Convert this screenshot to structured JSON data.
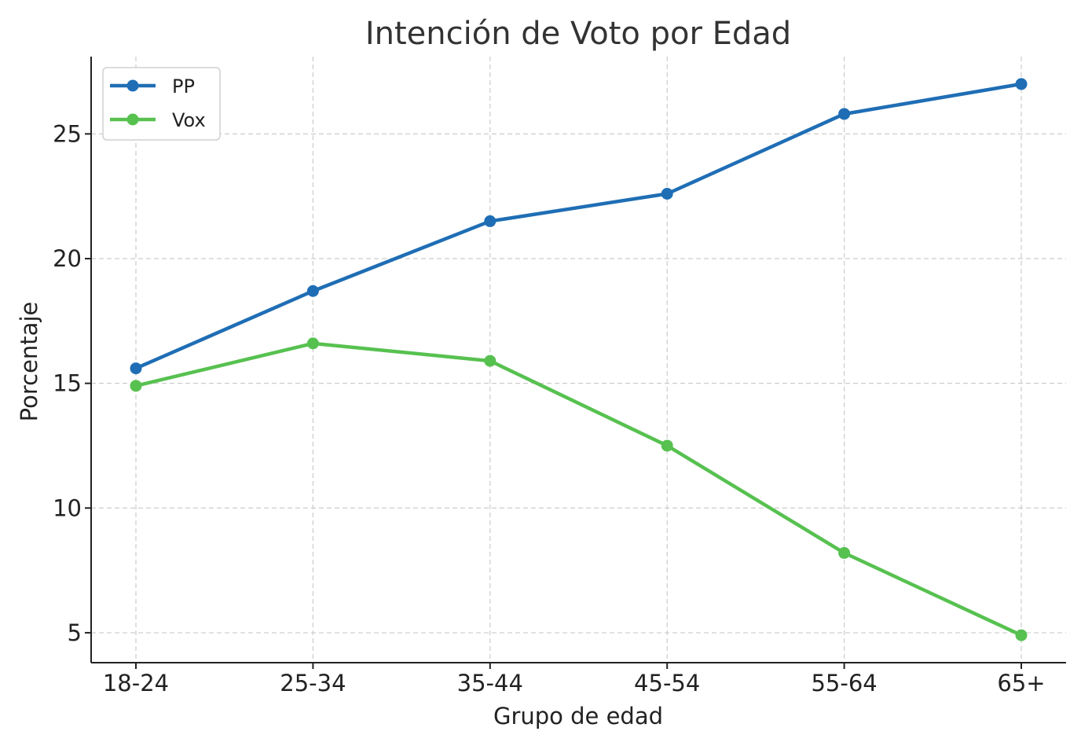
{
  "chart_data": {
    "type": "line",
    "title": "Intención de Voto por Edad",
    "xlabel": "Grupo de edad",
    "ylabel": "Porcentaje",
    "categories": [
      "18-24",
      "25-34",
      "35-44",
      "45-54",
      "55-64",
      "65+"
    ],
    "series": [
      {
        "name": "PP",
        "color": "#1f6eb5",
        "values": [
          15.6,
          18.7,
          21.5,
          22.6,
          25.8,
          27.0
        ]
      },
      {
        "name": "Vox",
        "color": "#57c150",
        "values": [
          14.9,
          16.6,
          15.9,
          12.5,
          8.2,
          4.9
        ]
      }
    ],
    "yticks": [
      5,
      10,
      15,
      20,
      25
    ],
    "ylim": [
      3.8,
      28.1
    ],
    "grid": true,
    "legend_position": "top-left"
  }
}
